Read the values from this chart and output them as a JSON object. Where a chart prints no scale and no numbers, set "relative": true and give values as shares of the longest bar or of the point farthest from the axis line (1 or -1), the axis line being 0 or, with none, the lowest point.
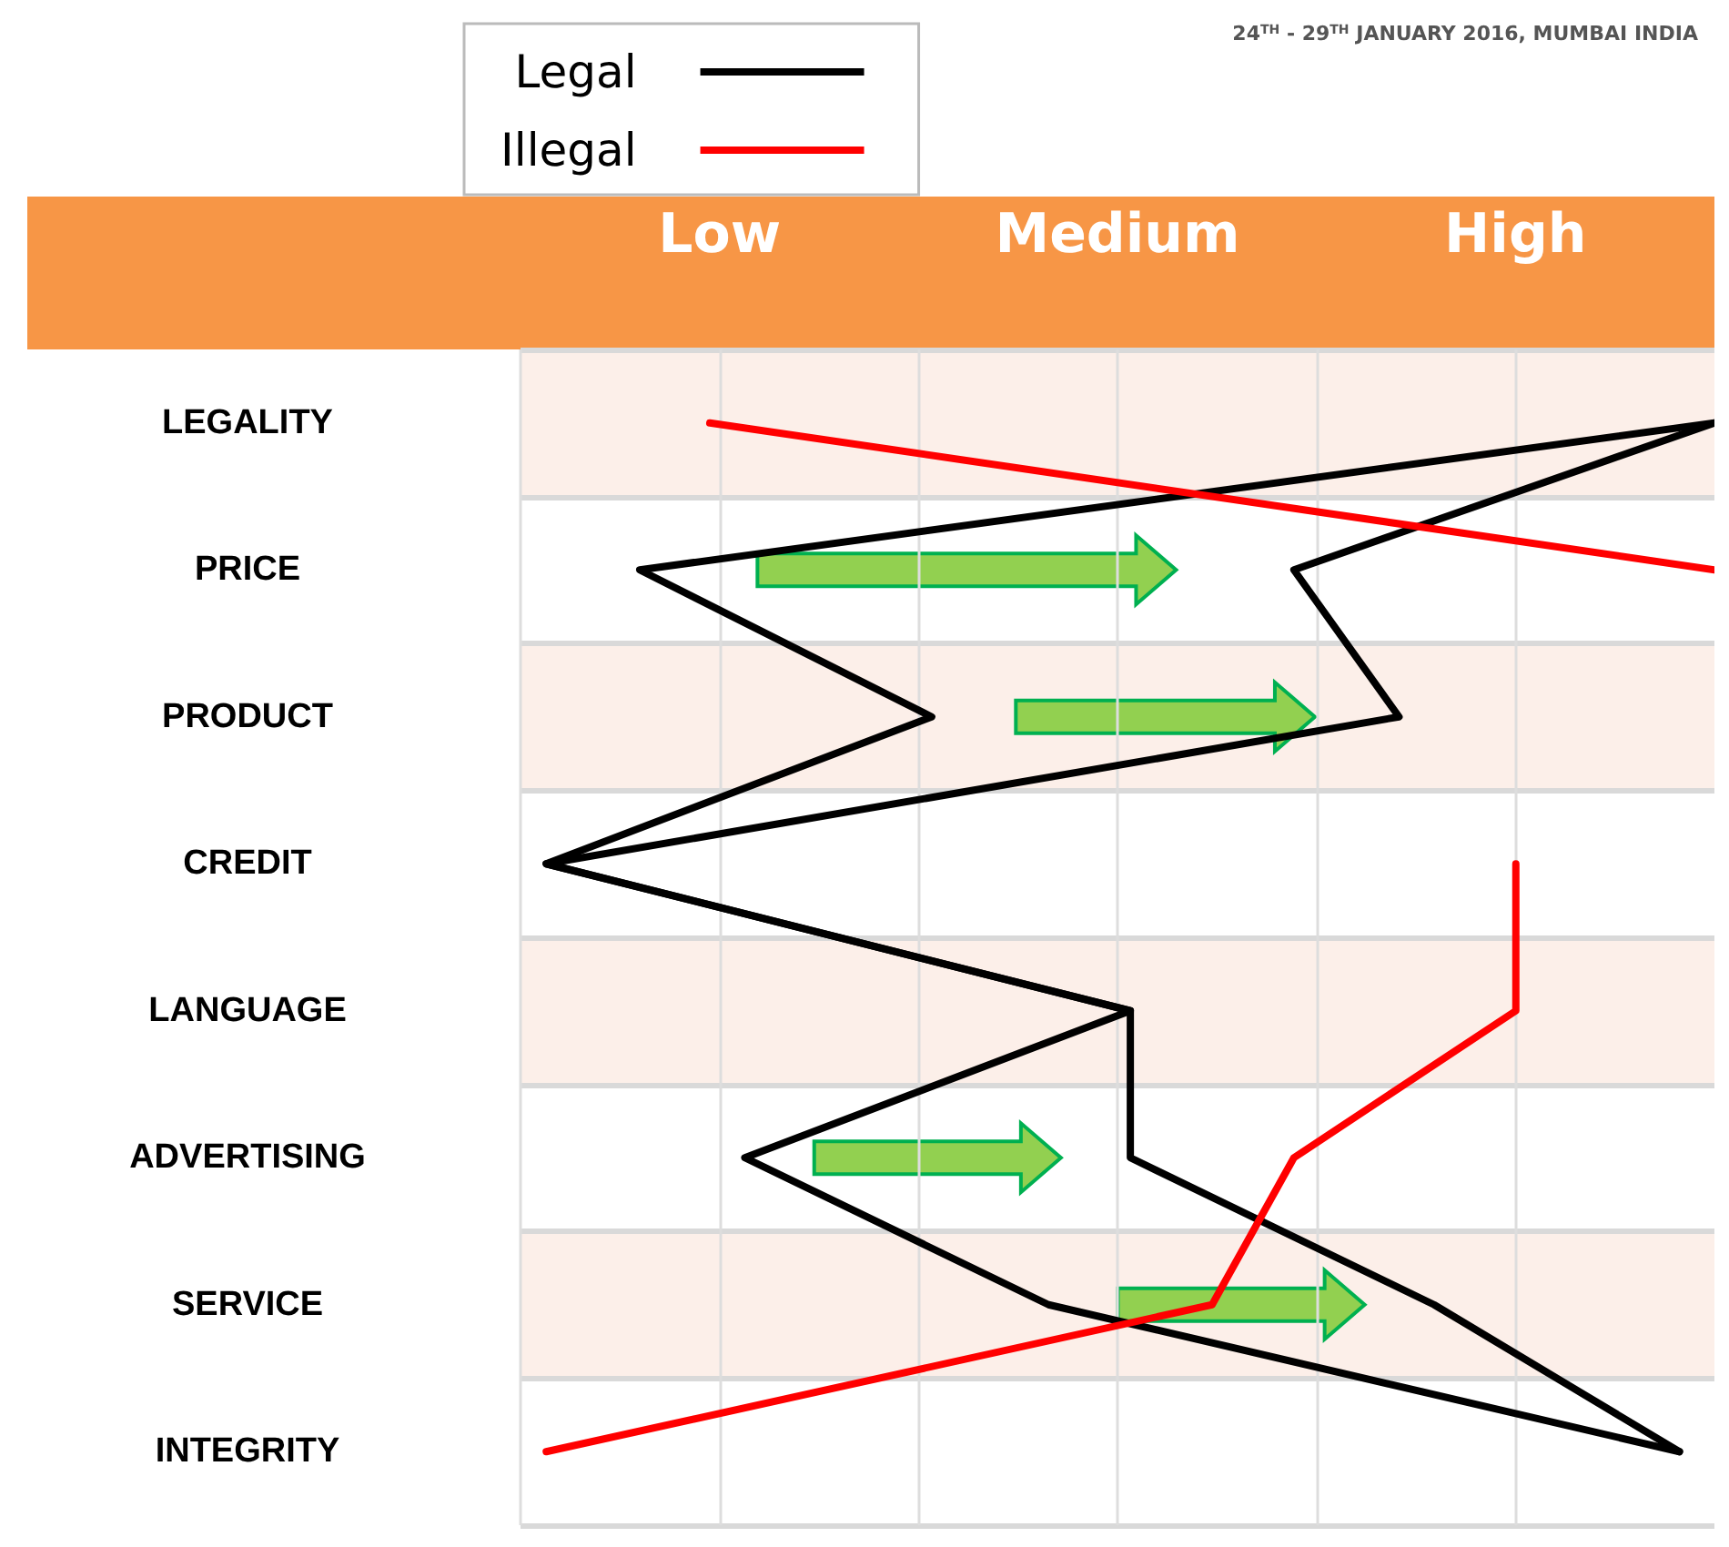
{
  "chart_data": {
    "type": "line",
    "orientation": "horizontal",
    "relative": true,
    "annotations": [
      "24$^{TH}$ - 29$^{TH}$ JANUARY 2016, MUMBAI INDIA",
      "Low",
      "Medium",
      "High"
    ],
    "categories": [
      "LEGALITY",
      "PRICE",
      "PRODUCT",
      "CREDIT",
      "LANGUAGE",
      "ADVERTISING",
      "SERVICE",
      "INTEGRITY"
    ],
    "series": [
      {
        "name": "Legal",
        "color": "#000000",
        "values": [
          1,
          0.08,
          0.33,
          0,
          0.5,
          0.17,
          0.43,
          0.97
        ]
      },
      {
        "color": "#000000",
        "values": [
          1,
          0.64,
          0.73,
          0,
          0.5,
          0.5,
          0.76,
          0.97
        ]
      },
      {
        "name": "Illegal",
        "color": "#ff0000",
        "values": [
          0.14,
          1,
          null,
          0.83,
          0.83,
          0.64,
          0.57,
          0
        ]
      }
    ],
    "grid": true,
    "legend": "top",
    "marker": "none",
    "line_style": "solid"
  }
}
